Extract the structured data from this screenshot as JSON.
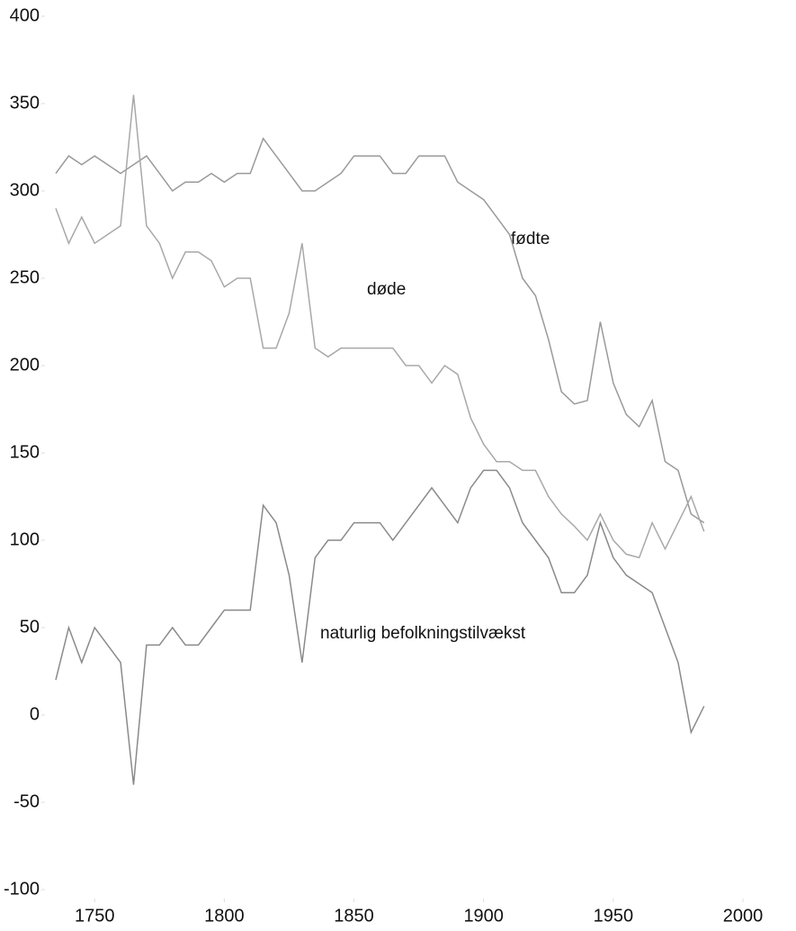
{
  "chart_data": {
    "type": "line",
    "x": [
      1735,
      1740,
      1745,
      1750,
      1755,
      1760,
      1765,
      1770,
      1775,
      1780,
      1785,
      1790,
      1795,
      1800,
      1805,
      1810,
      1815,
      1820,
      1825,
      1830,
      1835,
      1840,
      1845,
      1850,
      1855,
      1860,
      1865,
      1870,
      1875,
      1880,
      1885,
      1890,
      1895,
      1900,
      1905,
      1910,
      1915,
      1920,
      1925,
      1930,
      1935,
      1940,
      1945,
      1950,
      1955,
      1960,
      1965,
      1970,
      1975,
      1980,
      1985
    ],
    "series": [
      {
        "name": "fødte",
        "color": "#9a9a9a",
        "values": [
          310,
          320,
          315,
          320,
          315,
          310,
          315,
          320,
          310,
          300,
          305,
          305,
          310,
          305,
          310,
          310,
          330,
          320,
          310,
          300,
          300,
          305,
          310,
          320,
          320,
          320,
          310,
          310,
          320,
          320,
          320,
          305,
          300,
          295,
          285,
          275,
          250,
          240,
          215,
          185,
          178,
          180,
          225,
          190,
          172,
          165,
          180,
          145,
          140,
          115,
          110
        ]
      },
      {
        "name": "døde",
        "color": "#a8a8a8",
        "values": [
          290,
          270,
          285,
          270,
          275,
          280,
          355,
          280,
          270,
          250,
          265,
          265,
          260,
          245,
          250,
          250,
          210,
          210,
          230,
          270,
          210,
          205,
          210,
          210,
          210,
          210,
          210,
          200,
          200,
          190,
          200,
          195,
          170,
          155,
          145,
          145,
          140,
          140,
          125,
          115,
          108,
          100,
          115,
          100,
          92,
          90,
          110,
          95,
          110,
          125,
          105
        ]
      },
      {
        "name": "naturlig befolkningstilvækst",
        "color": "#8a8a8a",
        "values": [
          20,
          50,
          30,
          50,
          40,
          30,
          -40,
          40,
          40,
          50,
          40,
          40,
          50,
          60,
          60,
          60,
          120,
          110,
          80,
          30,
          90,
          100,
          100,
          110,
          110,
          110,
          100,
          110,
          120,
          130,
          120,
          110,
          130,
          140,
          140,
          130,
          110,
          100,
          90,
          70,
          70,
          80,
          110,
          90,
          80,
          75,
          70,
          50,
          30,
          -10,
          5
        ]
      }
    ],
    "xlim": [
      1735,
      2000
    ],
    "xticks": [
      1750,
      1800,
      1850,
      1900,
      1950,
      2000
    ],
    "ylim": [
      -100,
      400
    ],
    "yticks": [
      -100,
      -50,
      0,
      50,
      100,
      150,
      200,
      250,
      300,
      350,
      400
    ],
    "grid": false
  }
}
